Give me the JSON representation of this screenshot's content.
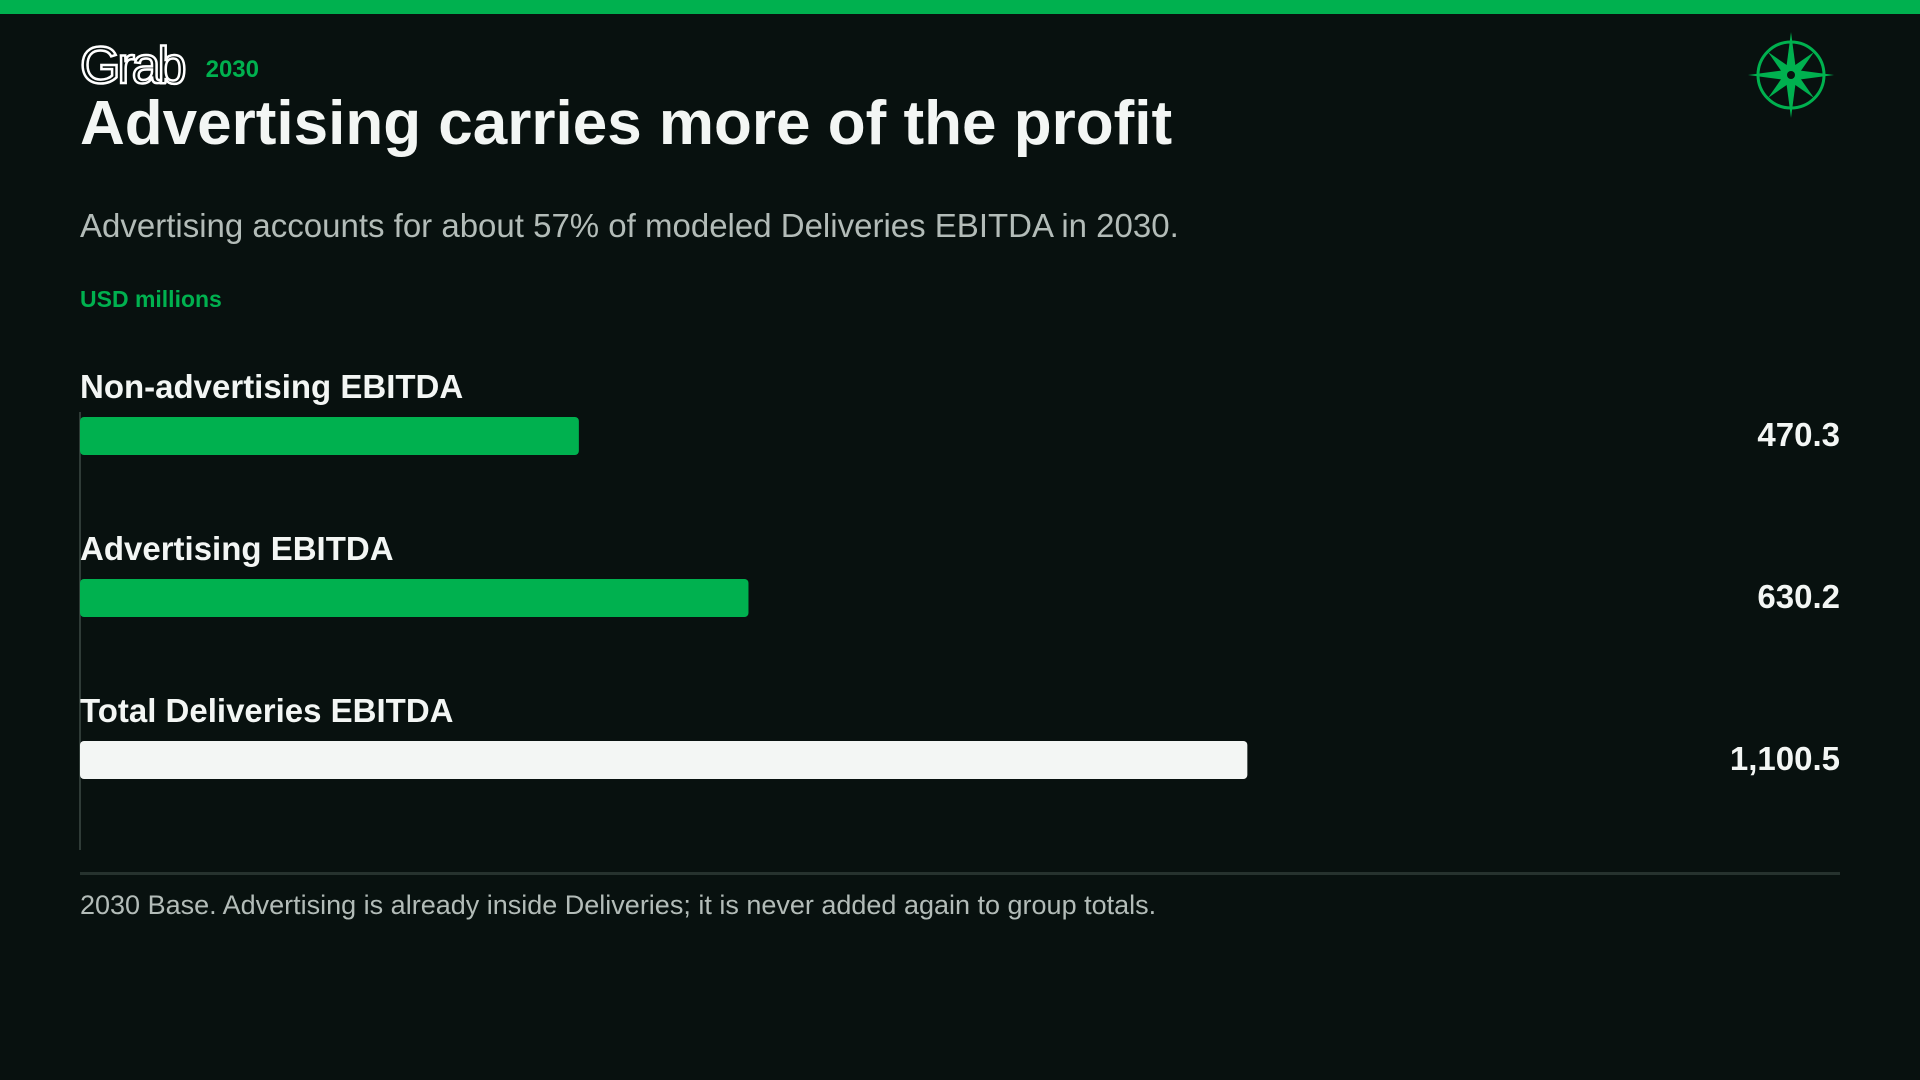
{
  "header": {
    "logo_text": "Grab",
    "year": "2030",
    "title": "Advertising carries more of the profit",
    "subtitle": "Advertising accounts for about 57% of modeled Deliveries EBITDA in 2030.",
    "unit_label": "USD millions"
  },
  "colors": {
    "background": "#08110f",
    "accent": "#00b14f",
    "total_bar": "#f3f6f4",
    "muted_text": "#b3bcb8"
  },
  "icons": {
    "logo": "grab-logo",
    "corner": "compass-rose-icon"
  },
  "chart_data": {
    "type": "bar",
    "orientation": "horizontal",
    "unit": "USD millions",
    "categories": [
      "Non-advertising EBITDA",
      "Advertising EBITDA",
      "Total Deliveries EBITDA"
    ],
    "values": [
      470.3,
      630.2,
      1100.5
    ],
    "value_labels": [
      "470.3",
      "630.2",
      "1,100.5"
    ],
    "bar_colors": [
      "#00b14f",
      "#00b14f",
      "#f3f6f4"
    ],
    "xlim": [
      0,
      1350
    ],
    "grid": false,
    "legend": "none"
  },
  "footer": {
    "note": "2030 Base. Advertising is already inside Deliveries; it is never added again to group totals."
  }
}
